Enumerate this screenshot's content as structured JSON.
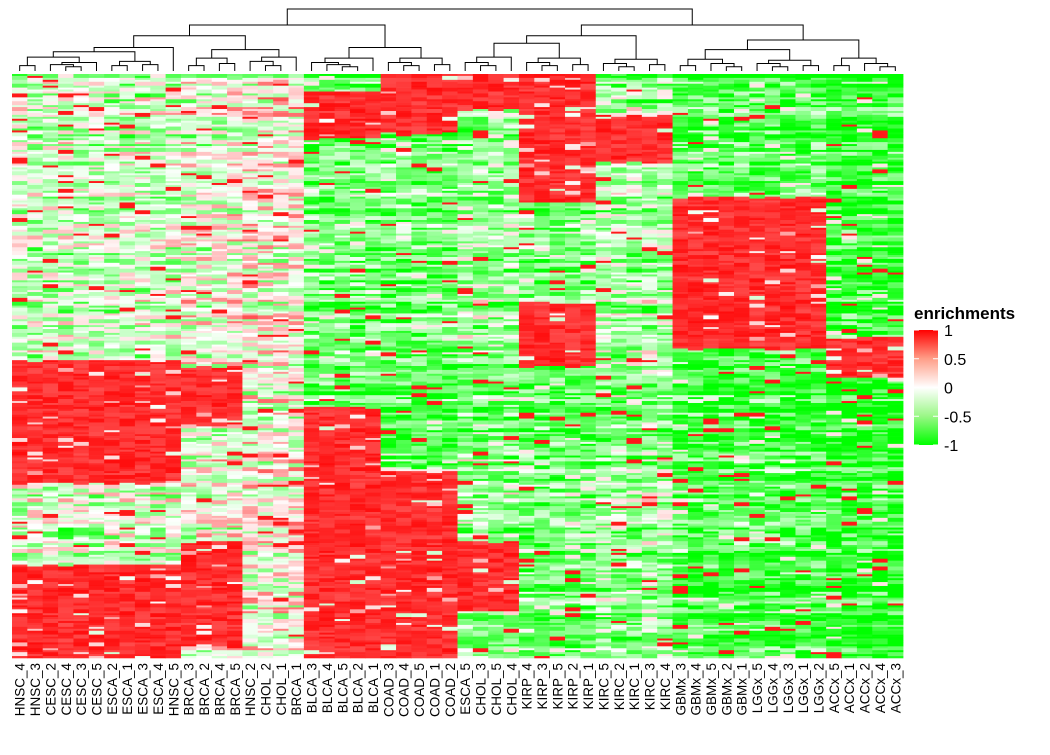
{
  "chart_data": {
    "type": "heatmap",
    "title": "",
    "xlabel": "",
    "ylabel": "",
    "legend": {
      "title": "enrichments",
      "ticks": [
        "1",
        "0.5",
        "0",
        "-0.5",
        "-1"
      ],
      "tick_values": [
        1,
        0.5,
        0,
        -0.5,
        -1
      ],
      "placement": "right"
    },
    "color_scale": {
      "low": "#00FF00",
      "mid": "#FFFFFF",
      "high": "#FF0000",
      "min": -1,
      "max": 1
    },
    "row_count_estimate": 300,
    "column_dendrogram": true,
    "columns": [
      "HNSC_4",
      "HNSC_3",
      "CESC_2",
      "CESC_4",
      "CESC_3",
      "CESC_5",
      "ESCA_2",
      "ESCA_1",
      "ESCA_3",
      "ESCA_4",
      "HNSC_5",
      "BRCA_3",
      "BRCA_2",
      "BRCA_4",
      "BRCA_5",
      "HNSC_2",
      "CHOL_2",
      "CHOL_1",
      "BRCA_1",
      "BLCA_3",
      "BLCA_4",
      "BLCA_5",
      "BLCA_2",
      "BLCA_1",
      "COAD_3",
      "COAD_4",
      "COAD_5",
      "COAD_1",
      "COAD_2",
      "ESCA_5",
      "CHOL_3",
      "CHOL_5",
      "CHOL_4",
      "KIRP_4",
      "KIRP_3",
      "KIRP_5",
      "KIRP_2",
      "KIRP_1",
      "KIRC_5",
      "KIRC_2",
      "KIRC_1",
      "KIRC_3",
      "KIRC_4",
      "GBMx_3",
      "GBMx_4",
      "GBMx_5",
      "GBMx_2",
      "GBMx_1",
      "LGGx_5",
      "LGGx_4",
      "LGGx_3",
      "LGGx_1",
      "LGGx_2",
      "ACCx_5",
      "ACCx_1",
      "ACCx_2",
      "ACCx_4",
      "ACCx_3"
    ],
    "column_clusters": [
      {
        "columns": [
          "HNSC_4",
          "HNSC_3",
          "CESC_2",
          "CESC_4",
          "CESC_3",
          "CESC_5",
          "ESCA_2",
          "ESCA_1",
          "ESCA_3",
          "ESCA_4",
          "HNSC_5"
        ],
        "high_row_bands": [
          [
            0.49,
            0.7
          ],
          [
            0.84,
            1.0
          ]
        ]
      },
      {
        "columns": [
          "BRCA_3",
          "BRCA_2",
          "BRCA_4",
          "BRCA_5"
        ],
        "high_row_bands": [
          [
            0.5,
            0.6
          ],
          [
            0.8,
            0.98
          ]
        ]
      },
      {
        "columns": [
          "HNSC_2",
          "CHOL_2",
          "CHOL_1",
          "BRCA_1"
        ],
        "high_row_bands": []
      },
      {
        "columns": [
          "BLCA_3",
          "BLCA_4",
          "BLCA_5",
          "BLCA_2",
          "BLCA_1"
        ],
        "high_row_bands": [
          [
            0.03,
            0.11
          ],
          [
            0.57,
            1.0
          ]
        ]
      },
      {
        "columns": [
          "COAD_3",
          "COAD_4",
          "COAD_5",
          "COAD_1",
          "COAD_2"
        ],
        "high_row_bands": [
          [
            0.0,
            0.1
          ],
          [
            0.68,
            1.0
          ]
        ]
      },
      {
        "columns": [
          "ESCA_5",
          "CHOL_3",
          "CHOL_5",
          "CHOL_4"
        ],
        "high_row_bands": [
          [
            0.0,
            0.06
          ],
          [
            0.8,
            0.92
          ]
        ]
      },
      {
        "columns": [
          "KIRP_4",
          "KIRP_3",
          "KIRP_5",
          "KIRP_2",
          "KIRP_1"
        ],
        "high_row_bands": [
          [
            0.0,
            0.22
          ],
          [
            0.39,
            0.5
          ]
        ]
      },
      {
        "columns": [
          "KIRC_5",
          "KIRC_2",
          "KIRC_1",
          "KIRC_3",
          "KIRC_4"
        ],
        "high_row_bands": [
          [
            0.07,
            0.15
          ]
        ]
      },
      {
        "columns": [
          "GBMx_3",
          "GBMx_4",
          "GBMx_5",
          "GBMx_2",
          "GBMx_1",
          "LGGx_5",
          "LGGx_4",
          "LGGx_3",
          "LGGx_1",
          "LGGx_2"
        ],
        "high_row_bands": [
          [
            0.21,
            0.47
          ]
        ]
      },
      {
        "columns": [
          "ACCx_5",
          "ACCx_1",
          "ACCx_2",
          "ACCx_4",
          "ACCx_3"
        ],
        "high_row_bands": [
          [
            0.45,
            0.52
          ]
        ]
      }
    ]
  }
}
